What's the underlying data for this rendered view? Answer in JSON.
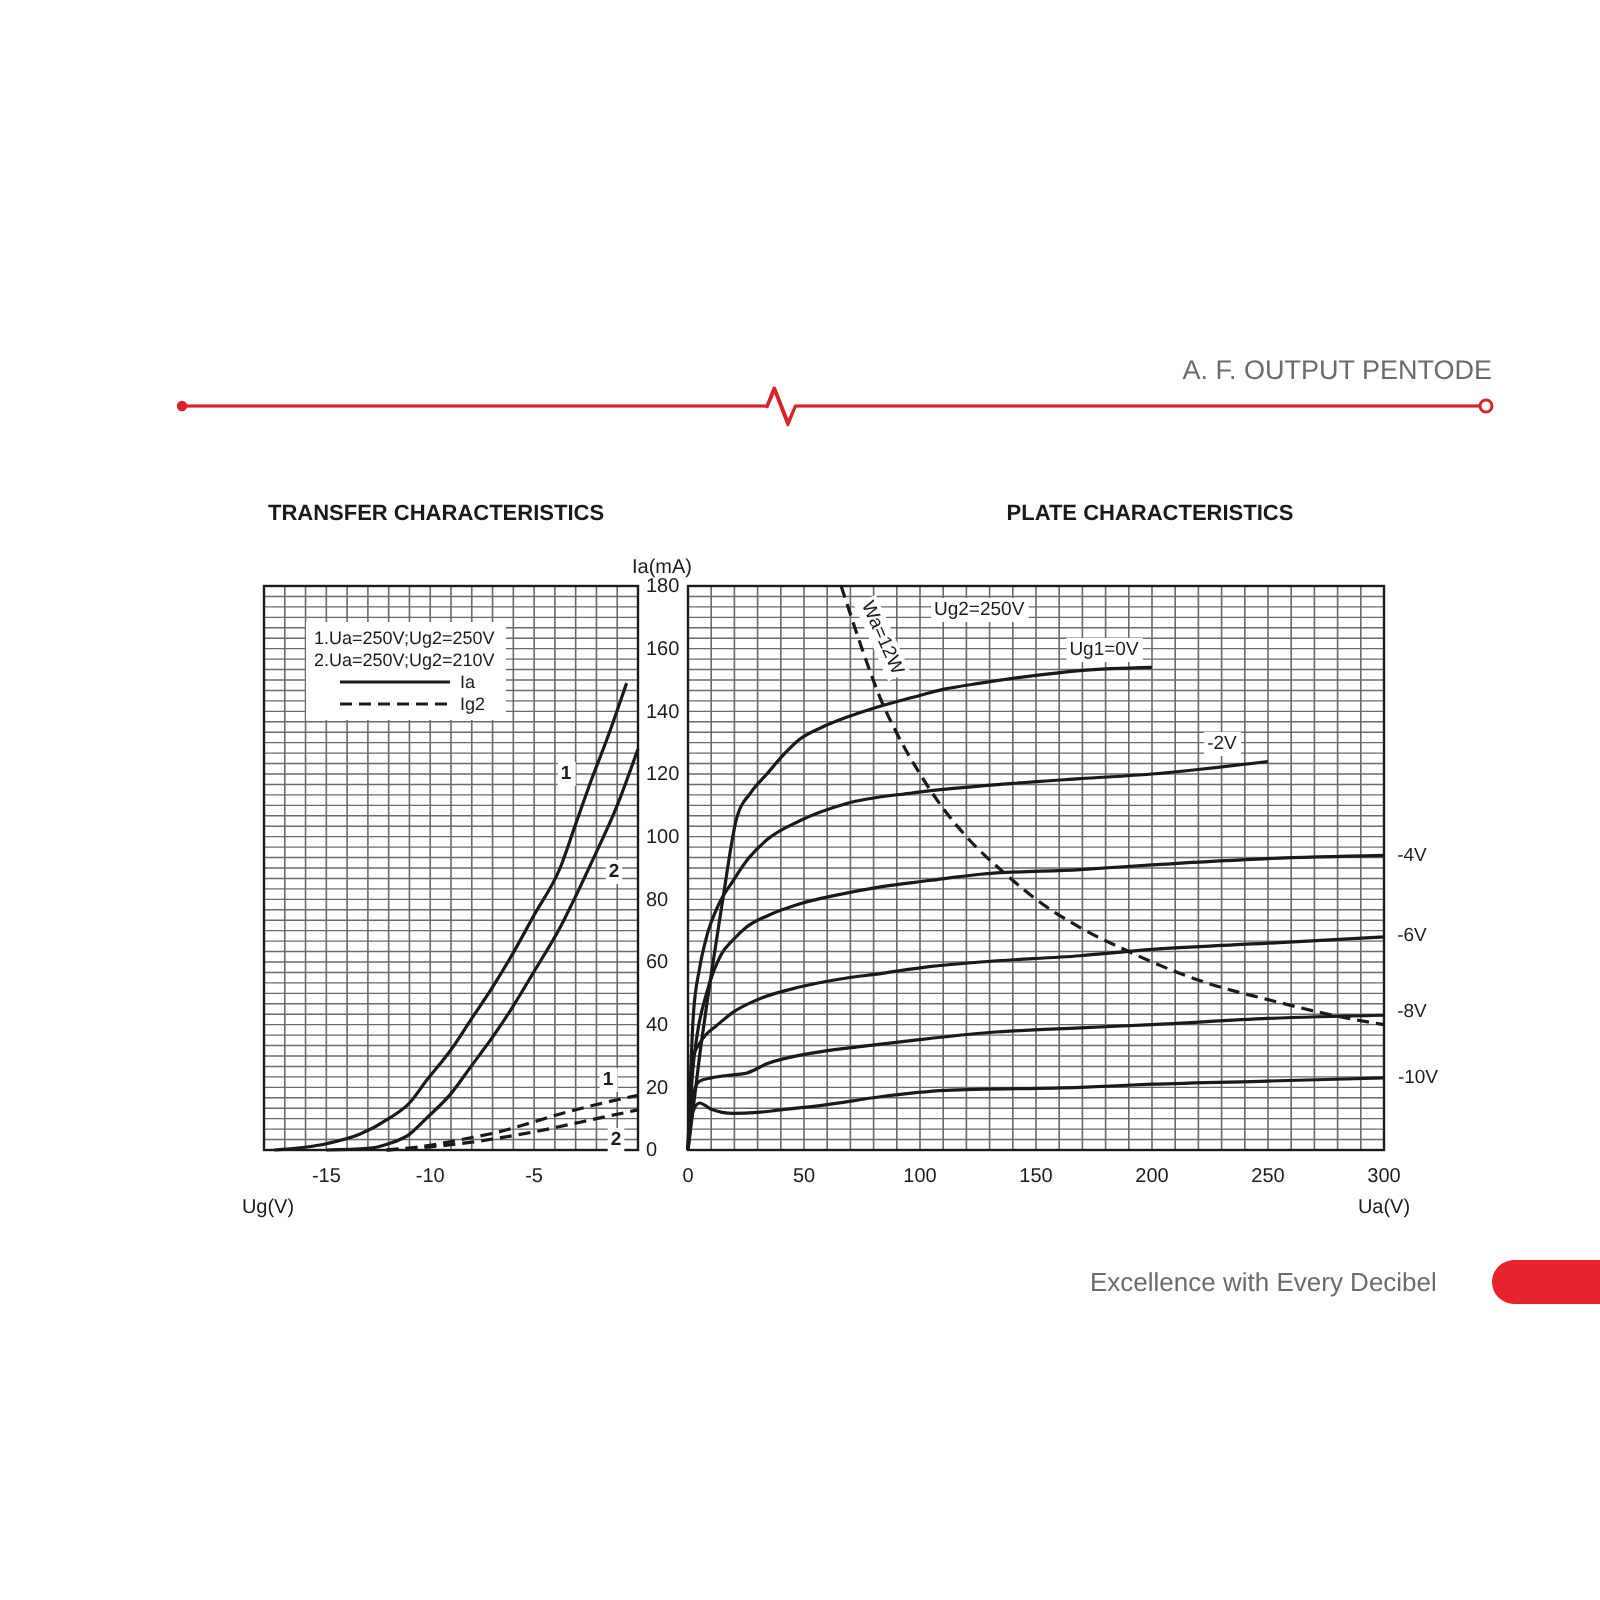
{
  "chart_data": [
    {
      "type": "line",
      "title": "TRANSFER CHARACTERISTICS",
      "xlabel": "Ug(V)",
      "xlim": [
        -18,
        0
      ],
      "xticks": [
        {
          "value": -18,
          "label": null
        },
        {
          "value": -17,
          "label": null
        },
        {
          "value": -16,
          "label": null
        },
        -15,
        {
          "value": -14,
          "label": null
        },
        {
          "value": -13,
          "label": null
        },
        {
          "value": -12,
          "label": null
        },
        {
          "value": -11,
          "label": null
        },
        -10,
        {
          "value": -9,
          "label": null
        },
        {
          "value": -8,
          "label": null
        },
        {
          "value": -7,
          "label": null
        },
        {
          "value": -6,
          "label": null
        },
        -5,
        {
          "value": -4,
          "label": null
        },
        {
          "value": -3,
          "label": null
        },
        {
          "value": -2,
          "label": null
        },
        {
          "value": -1,
          "label": null
        },
        {
          "value": 0,
          "label": null
        }
      ],
      "ylim": [
        0,
        180
      ],
      "yticks": [
        0,
        {
          "value": 3.33,
          "label": null
        },
        {
          "value": 6.67,
          "label": null
        },
        {
          "value": 10,
          "label": null
        },
        {
          "value": 13.33,
          "label": null
        },
        {
          "value": 16.67,
          "label": null
        },
        20,
        {
          "value": 23.33,
          "label": null
        },
        {
          "value": 26.67,
          "label": null
        },
        {
          "value": 30,
          "label": null
        },
        {
          "value": 33.33,
          "label": null
        },
        {
          "value": 36.67,
          "label": null
        },
        40,
        {
          "value": 43.33,
          "label": null
        },
        {
          "value": 46.67,
          "label": null
        },
        {
          "value": 50,
          "label": null
        },
        {
          "value": 53.33,
          "label": null
        },
        {
          "value": 56.67,
          "label": null
        },
        60,
        {
          "value": 63.33,
          "label": null
        },
        {
          "value": 66.67,
          "label": null
        },
        {
          "value": 70,
          "label": null
        },
        {
          "value": 73.33,
          "label": null
        },
        {
          "value": 76.67,
          "label": null
        },
        80,
        {
          "value": 83.33,
          "label": null
        },
        {
          "value": 86.67,
          "label": null
        },
        {
          "value": 90,
          "label": null
        },
        {
          "value": 93.33,
          "label": null
        },
        {
          "value": 96.67,
          "label": null
        },
        100,
        {
          "value": 103.33,
          "label": null
        },
        {
          "value": 106.67,
          "label": null
        },
        {
          "value": 110,
          "label": null
        },
        {
          "value": 113.33,
          "label": null
        },
        {
          "value": 116.67,
          "label": null
        },
        120,
        {
          "value": 123.33,
          "label": null
        },
        {
          "value": 126.67,
          "label": null
        },
        {
          "value": 130,
          "label": null
        },
        {
          "value": 133.33,
          "label": null
        },
        {
          "value": 136.67,
          "label": null
        },
        140,
        {
          "value": 143.33,
          "label": null
        },
        {
          "value": 146.67,
          "label": null
        },
        {
          "value": 150,
          "label": null
        },
        {
          "value": 153.33,
          "label": null
        },
        {
          "value": 156.67,
          "label": null
        },
        160,
        {
          "value": 163.33,
          "label": null
        },
        {
          "value": 166.67,
          "label": null
        },
        {
          "value": 170,
          "label": null
        },
        {
          "value": 173.33,
          "label": null
        },
        {
          "value": 176.67,
          "label": null
        },
        180
      ],
      "tick_labels": "x",
      "grid": true,
      "series": [
        {
          "name": "1",
          "color": "#1a1a1a",
          "line_style": "solid",
          "x": [
            -17.5,
            -15,
            -13.4,
            -12,
            -11,
            -10.2,
            -9,
            -8,
            -7,
            -6,
            -5,
            -3.75,
            -3,
            -2.25,
            -1.5,
            -0.55
          ],
          "values": [
            0,
            2,
            5,
            10,
            15,
            22,
            32,
            42,
            52,
            63,
            75,
            90,
            104,
            118,
            131,
            149
          ]
        },
        {
          "name": "2",
          "color": "#1a1a1a",
          "line_style": "solid",
          "x": [
            -15,
            -13,
            -12,
            -11,
            -10.2,
            -9,
            -8,
            -7,
            -6,
            -5,
            -3.75,
            -3,
            -2.15,
            -1,
            0
          ],
          "values": [
            0,
            0.5,
            2,
            5,
            10,
            18,
            27,
            36,
            46,
            57,
            71,
            81,
            93,
            110,
            128
          ]
        },
        {
          "name": "1",
          "color": "#1a1a1a",
          "line_style": "dashed",
          "x": [
            -12.1,
            -10,
            -8,
            -7,
            -5,
            -3.75,
            -2,
            0
          ],
          "values": [
            0,
            1.5,
            4,
            5.3,
            9,
            11.5,
            14.5,
            17.5
          ]
        },
        {
          "name": "2",
          "color": "#1a1a1a",
          "line_style": "dashed",
          "x": [
            -12.1,
            -10,
            -8,
            -7,
            -5,
            -3.75,
            -2,
            0
          ],
          "values": [
            0,
            1,
            2.5,
            3.5,
            5.8,
            7.5,
            10,
            12.8
          ]
        }
      ],
      "annotations": [
        "A. F. OUTPUT PENTODE",
        "1.Ua=250V;Ug2=250V",
        "2.Ua=250V;Ug2=210V",
        "Ia",
        "Ig2"
      ]
    },
    {
      "type": "line",
      "title": "PLATE CHARACTERISTICS",
      "xlabel": "Ua(V)",
      "ylabel": "Ia(mA)",
      "xlim": [
        0,
        300
      ],
      "xticks": [
        0,
        {
          "value": 10,
          "label": null
        },
        {
          "value": 20,
          "label": null
        },
        {
          "value": 30,
          "label": null
        },
        {
          "value": 40,
          "label": null
        },
        50,
        {
          "value": 60,
          "label": null
        },
        {
          "value": 70,
          "label": null
        },
        {
          "value": 80,
          "label": null
        },
        {
          "value": 90,
          "label": null
        },
        100,
        {
          "value": 110,
          "label": null
        },
        {
          "value": 120,
          "label": null
        },
        {
          "value": 130,
          "label": null
        },
        {
          "value": 140,
          "label": null
        },
        150,
        {
          "value": 160,
          "label": null
        },
        {
          "value": 170,
          "label": null
        },
        {
          "value": 180,
          "label": null
        },
        {
          "value": 190,
          "label": null
        },
        200,
        {
          "value": 210,
          "label": null
        },
        {
          "value": 220,
          "label": null
        },
        {
          "value": 230,
          "label": null
        },
        {
          "value": 240,
          "label": null
        },
        250,
        {
          "value": 260,
          "label": null
        },
        {
          "value": 270,
          "label": null
        },
        {
          "value": 280,
          "label": null
        },
        {
          "value": 290,
          "label": null
        },
        300
      ],
      "ylim": [
        0,
        180
      ],
      "yticks": [
        0,
        {
          "value": 3.33,
          "label": null
        },
        {
          "value": 6.67,
          "label": null
        },
        {
          "value": 10,
          "label": null
        },
        {
          "value": 13.33,
          "label": null
        },
        {
          "value": 16.67,
          "label": null
        },
        20,
        {
          "value": 23.33,
          "label": null
        },
        {
          "value": 26.67,
          "label": null
        },
        {
          "value": 30,
          "label": null
        },
        {
          "value": 33.33,
          "label": null
        },
        {
          "value": 36.67,
          "label": null
        },
        40,
        {
          "value": 43.33,
          "label": null
        },
        {
          "value": 46.67,
          "label": null
        },
        {
          "value": 50,
          "label": null
        },
        {
          "value": 53.33,
          "label": null
        },
        {
          "value": 56.67,
          "label": null
        },
        60,
        {
          "value": 63.33,
          "label": null
        },
        {
          "value": 66.67,
          "label": null
        },
        {
          "value": 70,
          "label": null
        },
        {
          "value": 73.33,
          "label": null
        },
        {
          "value": 76.67,
          "label": null
        },
        80,
        {
          "value": 83.33,
          "label": null
        },
        {
          "value": 86.67,
          "label": null
        },
        {
          "value": 90,
          "label": null
        },
        {
          "value": 93.33,
          "label": null
        },
        {
          "value": 96.67,
          "label": null
        },
        100,
        {
          "value": 103.33,
          "label": null
        },
        {
          "value": 106.67,
          "label": null
        },
        {
          "value": 110,
          "label": null
        },
        {
          "value": 113.33,
          "label": null
        },
        {
          "value": 116.67,
          "label": null
        },
        120,
        {
          "value": 123.33,
          "label": null
        },
        {
          "value": 126.67,
          "label": null
        },
        {
          "value": 130,
          "label": null
        },
        {
          "value": 133.33,
          "label": null
        },
        {
          "value": 136.67,
          "label": null
        },
        140,
        {
          "value": 143.33,
          "label": null
        },
        {
          "value": 146.67,
          "label": null
        },
        {
          "value": 150,
          "label": null
        },
        {
          "value": 153.33,
          "label": null
        },
        {
          "value": 156.67,
          "label": null
        },
        160,
        {
          "value": 163.33,
          "label": null
        },
        {
          "value": 166.67,
          "label": null
        },
        {
          "value": 170,
          "label": null
        },
        {
          "value": 173.33,
          "label": null
        },
        {
          "value": 176.67,
          "label": null
        },
        180
      ],
      "grid": true,
      "series": [
        {
          "name": "Ug1=0V",
          "color": "#1a1a1a",
          "line_style": "solid",
          "x": [
            0,
            5,
            10,
            15,
            21,
            27,
            34,
            41,
            48,
            58,
            68,
            80,
            97,
            110,
            126,
            150,
            169,
            200
          ],
          "values": [
            0,
            30,
            56,
            80,
            106,
            114,
            120,
            126,
            131,
            135,
            138,
            141,
            144.5,
            147,
            149,
            151.5,
            153,
            154
          ]
        },
        {
          "name": "-2V",
          "color": "#1a1a1a",
          "line_style": "solid",
          "x": [
            0,
            2.3,
            5,
            8,
            13,
            19.5,
            26,
            34,
            48,
            68,
            97,
            140,
            169,
            200,
            250
          ],
          "values": [
            0,
            43,
            58,
            68,
            78,
            86,
            93,
            99,
            105,
            110.5,
            114,
            117,
            118.5,
            120,
            124
          ]
        },
        {
          "name": "-4V",
          "color": "#1a1a1a",
          "line_style": "solid",
          "x": [
            0,
            2,
            4,
            8,
            14,
            20,
            25,
            35,
            48,
            65,
            83,
            104,
            126,
            169,
            200,
            250,
            300
          ],
          "values": [
            0,
            25,
            37,
            50,
            62,
            67.5,
            71,
            75,
            78.5,
            81.5,
            84,
            86,
            88,
            89.5,
            91,
            93,
            94
          ]
        },
        {
          "name": "-6V",
          "color": "#1a1a1a",
          "line_style": "solid",
          "x": [
            0,
            1,
            2.3,
            5,
            8,
            12,
            19.5,
            30,
            48,
            65,
            83,
            104,
            126,
            169,
            200,
            250,
            300
          ],
          "values": [
            0,
            20,
            30,
            34,
            37,
            39.5,
            44,
            48,
            52,
            54.5,
            56.3,
            58.5,
            60,
            62,
            64,
            66,
            68
          ]
        },
        {
          "name": "-8V",
          "color": "#1a1a1a",
          "line_style": "solid",
          "x": [
            0,
            2,
            5,
            10,
            19.5,
            25,
            34,
            54,
            74,
            97,
            130,
            169,
            200,
            250,
            300
          ],
          "values": [
            0,
            17,
            22,
            23,
            24,
            24.5,
            27.5,
            31,
            33,
            35,
            37.5,
            39,
            40,
            42,
            43
          ]
        },
        {
          "name": "-10V",
          "color": "#1a1a1a",
          "line_style": "solid",
          "x": [
            0,
            2,
            5,
            10,
            19.5,
            30,
            40,
            60,
            83,
            111,
            169,
            200,
            250,
            300
          ],
          "values": [
            0,
            12,
            15,
            13,
            11.7,
            12,
            12.8,
            14.5,
            17,
            19,
            20,
            21,
            22,
            23
          ]
        },
        {
          "name": "Wa=12W",
          "color": "#1a1a1a",
          "line_style": "dashed",
          "x": [
            66,
            70,
            75,
            83,
            90,
            100,
            110,
            120,
            137,
            150,
            169,
            191,
            200,
            225,
            250,
            278,
            300
          ],
          "values": [
            180,
            171,
            160,
            144,
            133,
            120,
            109,
            100,
            88,
            80,
            71,
            63,
            60,
            53,
            48,
            43,
            40
          ]
        }
      ],
      "annotations": [
        "Ug2=250V",
        "Excellence with Every Decibel"
      ]
    }
  ]
}
